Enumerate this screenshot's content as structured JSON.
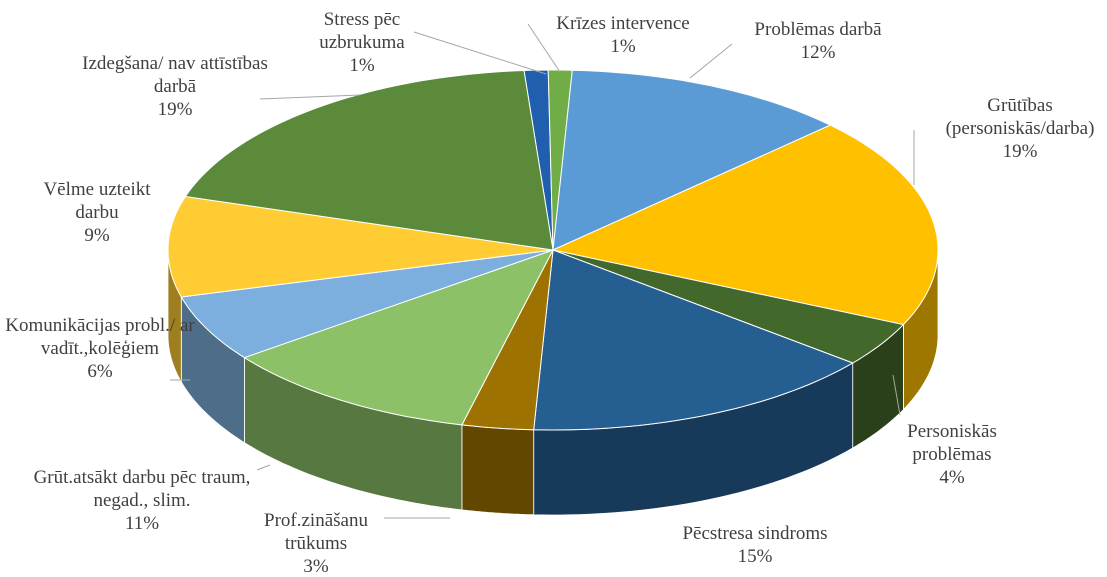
{
  "chart_data": {
    "type": "pie3d",
    "categories": [
      "Stress pēc uzbrukuma",
      "Krīzes intervence",
      "Problēmas darbā",
      "Grūtības (personiskās/darba)",
      "Personiskās problēmas",
      "Pēcstresa sindroms",
      "Prof.zināšanu trūkums",
      "Grūt.atsākt darbu pēc traum, negad., slim.",
      "Komunikācijas probl./ ar vadīt.,kolēģiem",
      "Vēlme uzteikt darbu",
      "Izdegšana/ nav attīstības darbā"
    ],
    "values": [
      1,
      1,
      12,
      19,
      4,
      15,
      3,
      11,
      6,
      9,
      19
    ],
    "value_labels": [
      "1%",
      "1%",
      "12%",
      "19%",
      "4%",
      "15%",
      "3%",
      "11%",
      "6%",
      "9%",
      "19%"
    ],
    "colors": [
      "#1f5fad",
      "#70ad47",
      "#5b9bd5",
      "#ffc000",
      "#43682b",
      "#255e91",
      "#9e7200",
      "#8cc168",
      "#7cafdd",
      "#ffcd33",
      "#5a8a3a"
    ]
  }
}
